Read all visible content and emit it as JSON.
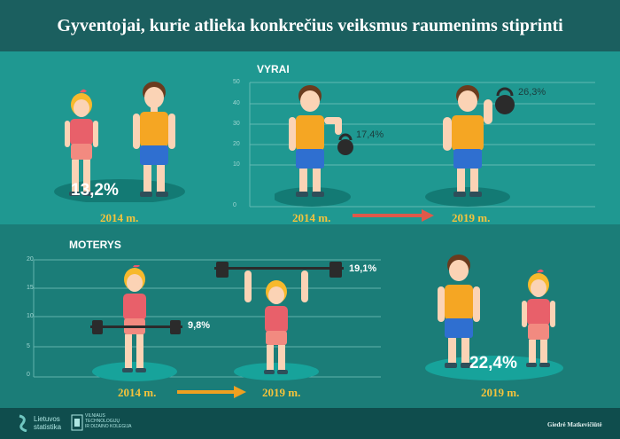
{
  "title": "Gyventojai, kurie atlieka konkrečius veiksmus raumenims stiprinti",
  "colors": {
    "title_bg": "#1b5f5f",
    "top_bg": "#1f9891",
    "bottom_bg": "#1b7d78",
    "footer_bg": "#0f4d4d",
    "year_text": "#f5c33b",
    "arrow_men": "#e0594a",
    "arrow_women": "#f0a020",
    "shirt_men": "#f5a623",
    "shirt_women": "#e8606a"
  },
  "top": {
    "overall": {
      "percent": "13,2%",
      "year": "2014 m."
    },
    "men": {
      "label": "VYRAI",
      "y_ticks": [
        "50",
        "40",
        "30",
        "20",
        "10",
        "0"
      ],
      "first": {
        "percent": "17,4%",
        "year": "2014 m."
      },
      "second": {
        "percent": "26,3%",
        "year": "2019 m."
      }
    }
  },
  "bottom": {
    "women": {
      "label": "MOTERYS",
      "y_ticks": [
        "20",
        "15",
        "10",
        "5",
        "0"
      ],
      "first": {
        "percent": "9,8%",
        "year": "2014 m."
      },
      "second": {
        "percent": "19,1%",
        "year": "2019 m."
      }
    },
    "overall": {
      "percent": "22,4%",
      "year": "2019 m."
    }
  },
  "footer": {
    "logo_line1": "Lietuvos",
    "logo_line2": "statistika",
    "partner_line1": "VILNIAUS",
    "partner_line2": "TECHNOLOGIJŲ",
    "partner_line3": "IR DIZAINO KOLEGIJA",
    "author": "Giedrė Matkevičiūtė"
  },
  "icons": {
    "woman": "woman-figure-icon",
    "man": "man-figure-icon",
    "kettlebell": "kettlebell-icon",
    "barbell": "barbell-icon",
    "arrow": "arrow-right-icon",
    "logo": "lietuvos-statistika-logo-icon",
    "emblem": "college-emblem-icon"
  }
}
